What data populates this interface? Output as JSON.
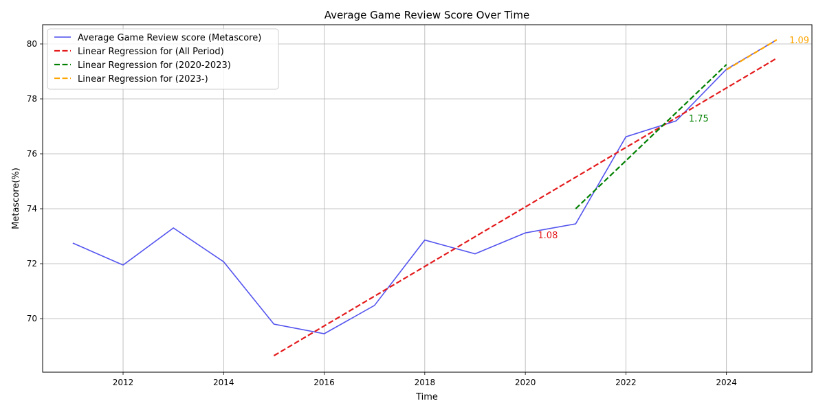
{
  "chart_data": {
    "type": "line",
    "title": "Average Game Review Score Over Time",
    "xlabel": "Time",
    "ylabel": "Metascore(%)",
    "xlim": [
      2010.4,
      2025.7
    ],
    "ylim": [
      68.05,
      80.7
    ],
    "xticks": [
      2012,
      2014,
      2016,
      2018,
      2020,
      2022,
      2024
    ],
    "yticks": [
      70,
      72,
      74,
      76,
      78,
      80
    ],
    "grid": true,
    "legend_position": "top-left",
    "series": [
      {
        "name": "Average Game Review score (Metascore)",
        "color": "#4a4aee",
        "style": "solid",
        "x": [
          2011,
          2012,
          2013,
          2014,
          2015,
          2016,
          2017,
          2018,
          2019,
          2020,
          2021,
          2022,
          2023,
          2024,
          2025
        ],
        "y": [
          72.75,
          71.95,
          73.3,
          72.07,
          69.8,
          69.45,
          70.48,
          72.86,
          72.36,
          73.12,
          73.45,
          76.62,
          77.2,
          79.08,
          80.15
        ]
      },
      {
        "name": "Linear Regression for (All Period)",
        "color": "#e41a1c",
        "style": "dashed",
        "x": [
          2015,
          2025
        ],
        "y": [
          68.65,
          79.48
        ]
      },
      {
        "name": "Linear Regression for (2020-2023)",
        "color": "#008000",
        "style": "dashed",
        "x": [
          2021,
          2024
        ],
        "y": [
          74.0,
          79.25
        ]
      },
      {
        "name": "Linear Regression for (2023-)",
        "color": "#ffa500",
        "style": "dashed",
        "x": [
          2024,
          2025
        ],
        "y": [
          79.06,
          80.15
        ]
      }
    ],
    "annotations": [
      {
        "text": "1.08",
        "x": 2020.25,
        "y": 73.05,
        "color": "#e41a1c"
      },
      {
        "text": "1.75",
        "x": 2023.25,
        "y": 77.3,
        "color": "#008000"
      },
      {
        "text": "1.09",
        "x": 2025.25,
        "y": 80.15,
        "color": "#ffa500"
      }
    ]
  }
}
